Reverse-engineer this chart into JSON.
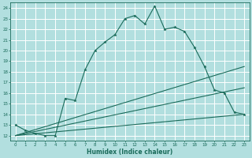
{
  "xlabel": "Humidex (Indice chaleur)",
  "ylabel": "",
  "bg_color": "#b2dfdf",
  "grid_color": "#ffffff",
  "line_color": "#1a6b5a",
  "xlim": [
    -0.5,
    23.5
  ],
  "ylim": [
    11.5,
    24.5
  ],
  "xticks": [
    0,
    1,
    2,
    3,
    4,
    5,
    6,
    7,
    8,
    9,
    10,
    11,
    12,
    13,
    14,
    15,
    16,
    17,
    18,
    19,
    20,
    21,
    22,
    23
  ],
  "yticks": [
    12,
    13,
    14,
    15,
    16,
    17,
    18,
    19,
    20,
    21,
    22,
    23,
    24
  ],
  "series": [
    {
      "x": [
        0,
        1,
        2,
        3,
        4,
        5,
        6,
        7,
        8,
        9,
        10,
        11,
        12,
        13,
        14,
        15,
        16,
        17,
        18,
        19,
        20,
        21,
        22,
        23
      ],
      "y": [
        13.0,
        12.5,
        12.2,
        12.0,
        12.0,
        15.5,
        15.3,
        18.2,
        20.0,
        20.8,
        21.5,
        23.0,
        23.3,
        22.5,
        24.2,
        22.0,
        22.2,
        21.8,
        20.3,
        18.5,
        16.3,
        16.0,
        14.2,
        14.0
      ],
      "marker": true
    },
    {
      "x": [
        0,
        23
      ],
      "y": [
        12.0,
        14.0
      ],
      "marker": false
    },
    {
      "x": [
        0,
        23
      ],
      "y": [
        12.0,
        16.5
      ],
      "marker": false
    },
    {
      "x": [
        0,
        23
      ],
      "y": [
        12.0,
        18.5
      ],
      "marker": false
    }
  ]
}
